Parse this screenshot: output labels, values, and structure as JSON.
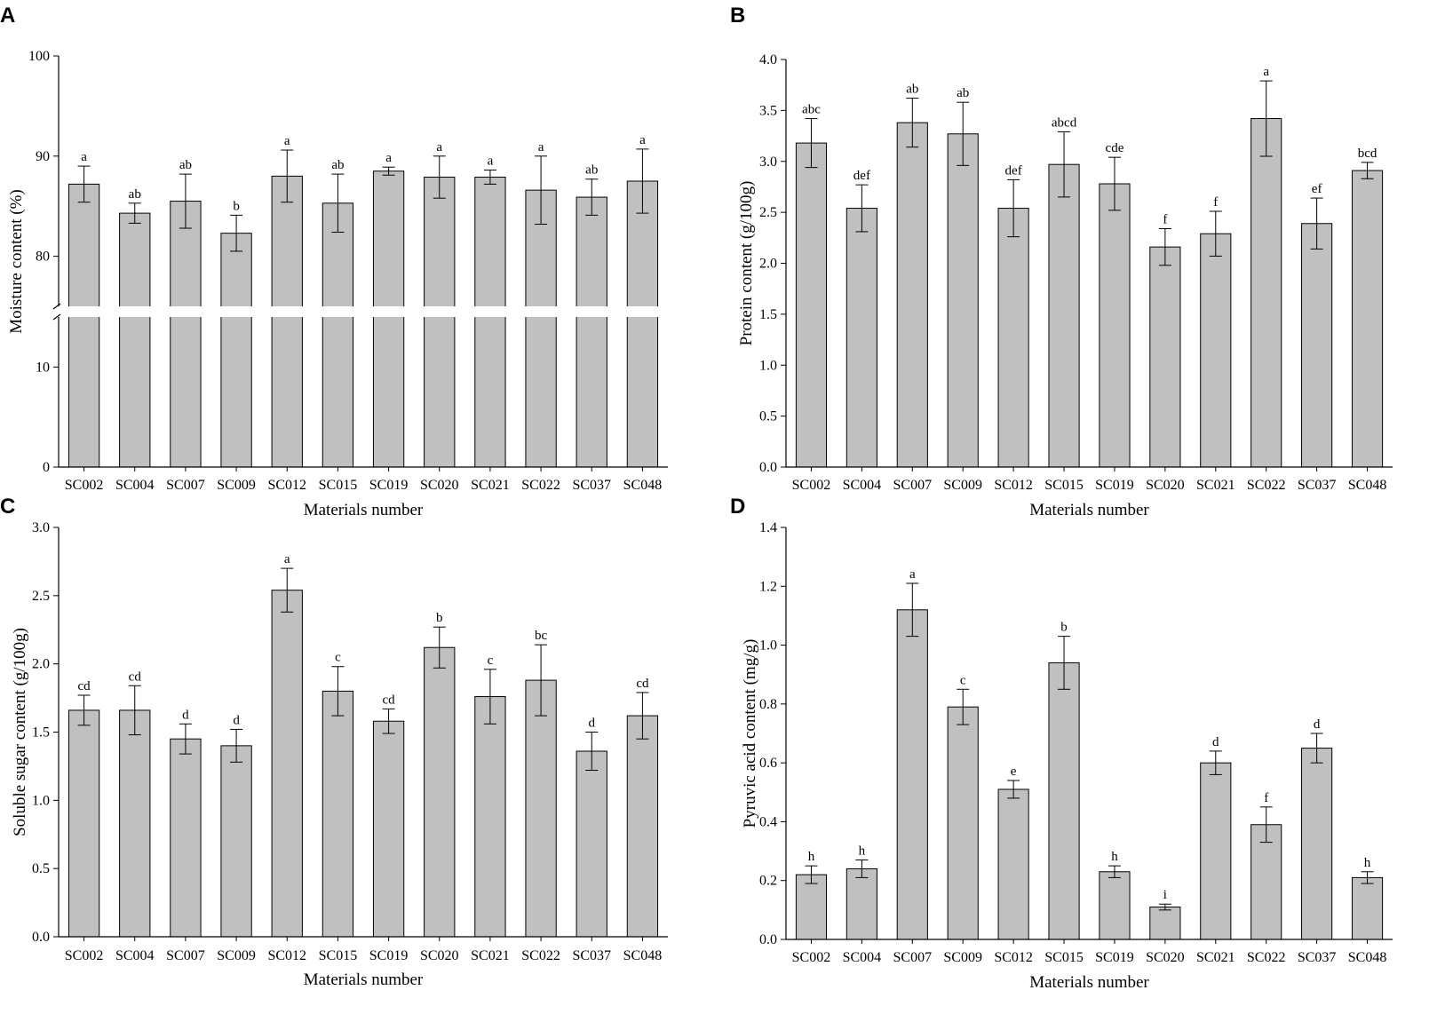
{
  "chart_data": [
    {
      "panel": "A",
      "type": "bar",
      "xlabel": "Materials number",
      "ylabel": "Moisture content (%)",
      "categories": [
        "SC002",
        "SC004",
        "SC007",
        "SC009",
        "SC012",
        "SC015",
        "SC019",
        "SC020",
        "SC021",
        "SC022",
        "SC037",
        "SC048"
      ],
      "values": [
        87.2,
        84.3,
        85.5,
        82.3,
        88.0,
        85.3,
        88.5,
        87.9,
        87.9,
        86.6,
        85.9,
        87.5
      ],
      "errors": [
        1.8,
        1.0,
        2.7,
        1.8,
        2.6,
        2.9,
        0.4,
        2.1,
        0.7,
        3.4,
        1.8,
        3.2
      ],
      "significance": [
        "a",
        "ab",
        "ab",
        "b",
        "a",
        "ab",
        "a",
        "a",
        "a",
        "a",
        "ab",
        "a"
      ],
      "broken_axis": {
        "lower_range": [
          0,
          15
        ],
        "upper_range": [
          75,
          100
        ]
      },
      "yticks": [
        0,
        10,
        80,
        90,
        100
      ],
      "ytick_labels": [
        "0",
        "10",
        "80",
        "90",
        "100"
      ]
    },
    {
      "panel": "B",
      "type": "bar",
      "xlabel": "Materials number",
      "ylabel": "Protein content (g/100g)",
      "categories": [
        "SC002",
        "SC004",
        "SC007",
        "SC009",
        "SC012",
        "SC015",
        "SC019",
        "SC020",
        "SC021",
        "SC022",
        "SC037",
        "SC048"
      ],
      "values": [
        3.18,
        2.54,
        3.38,
        3.27,
        2.54,
        2.97,
        2.78,
        2.16,
        2.29,
        3.42,
        2.39,
        2.91
      ],
      "errors": [
        0.24,
        0.23,
        0.24,
        0.31,
        0.28,
        0.32,
        0.26,
        0.18,
        0.22,
        0.37,
        0.25,
        0.08
      ],
      "significance": [
        "abc",
        "def",
        "ab",
        "ab",
        "def",
        "abcd",
        "cde",
        "f",
        "f",
        "a",
        "ef",
        "bcd"
      ],
      "ylim": [
        0,
        4.0
      ],
      "yticks": [
        0,
        0.5,
        1.0,
        1.5,
        2.0,
        2.5,
        3.0,
        3.5,
        4.0
      ],
      "ytick_labels": [
        "0.0",
        "0.5",
        "1.0",
        "1.5",
        "2.0",
        "2.5",
        "3.0",
        "3.5",
        "4.0"
      ]
    },
    {
      "panel": "C",
      "type": "bar",
      "xlabel": "Materials number",
      "ylabel": "Soluble sugar content (g/100g)",
      "categories": [
        "SC002",
        "SC004",
        "SC007",
        "SC009",
        "SC012",
        "SC015",
        "SC019",
        "SC020",
        "SC021",
        "SC022",
        "SC037",
        "SC048"
      ],
      "values": [
        1.66,
        1.66,
        1.45,
        1.4,
        2.54,
        1.8,
        1.58,
        2.12,
        1.76,
        1.88,
        1.36,
        1.62
      ],
      "errors": [
        0.11,
        0.18,
        0.11,
        0.12,
        0.16,
        0.18,
        0.09,
        0.15,
        0.2,
        0.26,
        0.14,
        0.17
      ],
      "significance": [
        "cd",
        "cd",
        "d",
        "d",
        "a",
        "c",
        "cd",
        "b",
        "c",
        "bc",
        "d",
        "cd"
      ],
      "ylim": [
        0,
        3.0
      ],
      "yticks": [
        0,
        0.5,
        1.0,
        1.5,
        2.0,
        2.5,
        3.0
      ],
      "ytick_labels": [
        "0.0",
        "0.5",
        "1.0",
        "1.5",
        "2.0",
        "2.5",
        "3.0"
      ]
    },
    {
      "panel": "D",
      "type": "bar",
      "xlabel": "Materials number",
      "ylabel": "Pyruvic acid content (mg/g)",
      "categories": [
        "SC002",
        "SC004",
        "SC007",
        "SC009",
        "SC012",
        "SC015",
        "SC019",
        "SC020",
        "SC021",
        "SC022",
        "SC037",
        "SC048"
      ],
      "values": [
        0.22,
        0.24,
        1.12,
        0.79,
        0.51,
        0.94,
        0.23,
        0.11,
        0.6,
        0.39,
        0.65,
        0.21
      ],
      "errors": [
        0.03,
        0.03,
        0.09,
        0.06,
        0.03,
        0.09,
        0.02,
        0.01,
        0.04,
        0.06,
        0.05,
        0.02
      ],
      "significance": [
        "h",
        "h",
        "a",
        "c",
        "e",
        "b",
        "h",
        "i",
        "d",
        "f",
        "d",
        "h"
      ],
      "ylim": [
        0,
        1.4
      ],
      "yticks": [
        0,
        0.2,
        0.4,
        0.6,
        0.8,
        1.0,
        1.2,
        1.4
      ],
      "ytick_labels": [
        "0.0",
        "0.2",
        "0.4",
        "0.6",
        "0.8",
        "1.0",
        "1.2",
        "1.4"
      ]
    }
  ],
  "colors": {
    "bar_fill": "#c0c0c0",
    "bar_stroke": "#000000",
    "axis": "#000000",
    "break_gap": "#ffffff"
  }
}
